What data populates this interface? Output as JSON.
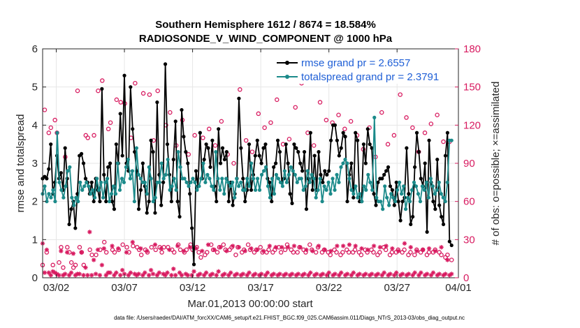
{
  "chart_data": {
    "type": "line",
    "title_line1": "Southern Hemisphere 1612 / 8674 = 18.584%",
    "title_line2": "RADIOSONDE_V_WIND_COMPONENT @ 1000 hPa",
    "xlabel": "Mar.01,2013 00:00:00 start",
    "ylabel": "rmse and totalspread",
    "y2label": "# of obs: o=possible; ×=assimilated",
    "footnote": "data file: /Users/raeder/DAI/ATM_forcXX/CAM6_setup/f.e21.FHIST_BGC.f09_025.CAM6assim.011/Diags_NTrS_2013-03/obs_diag_output.nc",
    "xlim": [
      1,
      31.5
    ],
    "ylim": [
      0,
      6
    ],
    "y2lim": [
      0,
      180
    ],
    "xticks": [
      {
        "v": 2,
        "label": "03/02"
      },
      {
        "v": 7,
        "label": "03/07"
      },
      {
        "v": 12,
        "label": "03/12"
      },
      {
        "v": 17,
        "label": "03/17"
      },
      {
        "v": 22,
        "label": "03/22"
      },
      {
        "v": 27,
        "label": "03/27"
      },
      {
        "v": 32,
        "label": "04/01"
      }
    ],
    "yticks": [
      0,
      1,
      2,
      3,
      4,
      5,
      6
    ],
    "y2ticks": [
      0,
      30,
      60,
      90,
      120,
      150,
      180
    ],
    "colors": {
      "rmse": "#000000",
      "spread": "#1b8a8a",
      "obs": "#d81b60",
      "legend_text": "#1f5fd6"
    },
    "series": [
      {
        "name": "rmse grand pr = 2.6557",
        "key": "rmse",
        "values": [
          2.6,
          2.65,
          2.6,
          2.85,
          3.5,
          2.2,
          2.5,
          3.2,
          2.6,
          2.75,
          2.3,
          3.4,
          2.6,
          1.4,
          1.8,
          2.0,
          1.3,
          2.2,
          3.2,
          3.25,
          3.0,
          2.6,
          2.5,
          2.2,
          2.5,
          2.0,
          2.6,
          2.3,
          2.0,
          4.95,
          2.7,
          2.0,
          2.9,
          3.0,
          2.0,
          1.8,
          3.5,
          3.0,
          4.3,
          3.2,
          5.3,
          3.0,
          2.8,
          5.0,
          3.9,
          3.3,
          2.8,
          1.8,
          2.3,
          3.0,
          2.4,
          1.7,
          2.0,
          3.6,
          3.3,
          1.7,
          4.6,
          2.7,
          1.9,
          2.5,
          5.6,
          3.5,
          2.7,
          2.0,
          3.1,
          4.1,
          2.0,
          1.6,
          4.4,
          3.7,
          3.3,
          3.0,
          2.2,
          1.3,
          0.35,
          2.8,
          2.4,
          3.8,
          2.6,
          3.1,
          3.5,
          3.4,
          2.9,
          3.6,
          2.4,
          2.0,
          3.9,
          3.0,
          3.4,
          3.1,
          3.3,
          2.0,
          2.5,
          1.9,
          2.2,
          2.6,
          4.7,
          3.4,
          2.6,
          2.0,
          2.3,
          3.5,
          2.3,
          2.7,
          3.2,
          3.6,
          3.2,
          3.0,
          3.4,
          3.5,
          2.6,
          2.5,
          2.0,
          2.9,
          3.0,
          3.6,
          3.3,
          2.5,
          2.6,
          3.5,
          3.0,
          2.2,
          1.95,
          3.5,
          3.4,
          3.3,
          3.0,
          2.8,
          3.3,
          1.8,
          2.6,
          3.8,
          2.3,
          3.2,
          2.3,
          3.3,
          2.7,
          2.5,
          2.8,
          2.7,
          2.8,
          3.6,
          4.0,
          4.0,
          3.6,
          3.2,
          3.4,
          3.8,
          3.7,
          2.0,
          2.7,
          3.0,
          2.1,
          3.8,
          3.6,
          2.0,
          2.0,
          3.5,
          3.0,
          3.9,
          3.5,
          3.4,
          2.2,
          1.9,
          2.5,
          2.6,
          2.6,
          2.7,
          2.8,
          2.9,
          2.4,
          2.3,
          1.9,
          2.5,
          2.0,
          1.5,
          2.0,
          2.1,
          3.4,
          2.2,
          1.4,
          1.6,
          2.9,
          3.8,
          3.3,
          2.6,
          2.4,
          3.0,
          1.2,
          3.6,
          2.5,
          2.0,
          1.8,
          3.1,
          1.9,
          1.6,
          1.4,
          3.2,
          3.8,
          0.95,
          0.85
        ]
      },
      {
        "name": "totalspread grand pr = 2.3791",
        "key": "spread",
        "values": [
          2.2,
          2.4,
          2.0,
          2.2,
          2.1,
          2.3,
          2.0,
          3.8,
          2.5,
          2.3,
          2.1,
          2.4,
          2.8,
          2.9,
          2.1,
          1.9,
          2.1,
          2.0,
          2.5,
          2.3,
          2.4,
          2.5,
          2.4,
          2.2,
          2.3,
          2.1,
          2.6,
          2.3,
          2.5,
          2.1,
          2.5,
          2.6,
          2.0,
          2.2,
          2.4,
          2.2,
          3.0,
          2.3,
          2.6,
          2.5,
          2.9,
          3.1,
          2.6,
          2.8,
          2.0,
          3.4,
          2.7,
          2.6,
          2.5,
          2.5,
          2.2,
          2.9,
          2.6,
          2.0,
          2.1,
          2.5,
          2.5,
          3.0,
          2.6,
          2.7,
          3.1,
          2.3,
          2.4,
          2.6,
          2.3,
          3.3,
          2.9,
          2.6,
          2.6,
          2.5,
          2.4,
          2.5,
          2.6,
          2.5,
          2.3,
          2.4,
          2.6,
          3.0,
          2.5,
          2.7,
          2.6,
          2.4,
          2.3,
          3.3,
          2.6,
          2.3,
          2.6,
          2.2,
          2.6,
          2.5,
          2.4,
          2.5,
          2.1,
          2.6,
          2.4,
          2.5,
          2.3,
          2.3,
          2.6,
          2.4,
          3.0,
          2.6,
          2.3,
          2.6,
          2.3,
          2.7,
          2.8,
          2.9,
          2.4,
          2.1,
          2.6,
          2.2,
          2.7,
          2.6,
          2.5,
          2.4,
          2.8,
          2.5,
          2.7,
          2.9,
          2.8,
          2.7,
          2.5,
          2.6,
          2.6,
          2.3,
          2.4,
          2.8,
          2.5,
          2.7,
          2.6,
          2.1,
          2.3,
          2.6,
          2.0,
          2.4,
          2.3,
          2.5,
          2.2,
          2.6,
          2.3,
          2.7,
          2.5,
          2.9,
          3.0,
          3.1,
          3.0,
          2.6,
          2.3,
          2.2,
          2.4,
          2.1,
          2.2,
          2.0,
          2.4,
          2.3,
          2.7,
          2.5,
          2.3,
          4.2,
          2.1,
          2.0,
          2.0,
          1.8,
          2.4,
          2.1,
          1.9,
          2.2,
          2.1,
          2.0,
          2.3,
          2.5,
          2.2,
          2.4,
          1.8,
          2.1,
          2.0,
          2.3,
          2.5,
          2.4,
          2.2,
          2.0,
          2.4,
          2.3,
          2.5,
          2.1,
          2.6,
          2.4,
          2.2,
          2.3,
          2.5,
          2.2,
          2.1,
          2.0,
          2.5,
          3.6,
          3.6
        ]
      },
      {
        "name": "possible",
        "key": "possible",
        "values": [
          10,
          132,
          20,
          114,
          118,
          10,
          124,
          114,
          12,
          24,
          8,
          95,
          24,
          20,
          12,
          8,
          10,
          147,
          24,
          20,
          10,
          112,
          110,
          22,
          18,
          112,
          18,
          147,
          22,
          155,
          28,
          20,
          117,
          122,
          22,
          20,
          140,
          22,
          138,
          26,
          137,
          24,
          20,
          110,
          25,
          153,
          24,
          22,
          18,
          145,
          22,
          20,
          144,
          24,
          108,
          22,
          147,
          24,
          20,
          24,
          120,
          24,
          130,
          22,
          20,
          104,
          26,
          22,
          124,
          20,
          22,
          97,
          26,
          22,
          112,
          24,
          20,
          16,
          110,
          18,
          20,
          117,
          26,
          22,
          104,
          20,
          24,
          123,
          26,
          22,
          97,
          22,
          24,
          90,
          18,
          24,
          148,
          20,
          22,
          108,
          26,
          22,
          99,
          20,
          22,
          129,
          24,
          20,
          118,
          20,
          22,
          122,
          20,
          22,
          140,
          24,
          20,
          105,
          22,
          26,
          109,
          22,
          20,
          134,
          20,
          24,
          153,
          22,
          20,
          114,
          26,
          22,
          104,
          20,
          24,
          138,
          20,
          22,
          124,
          20,
          18,
          122,
          22,
          20,
          128,
          18,
          20,
          117,
          22,
          20,
          123,
          20,
          22,
          112,
          20,
          18,
          101,
          22,
          20,
          118,
          22,
          20,
          95,
          18,
          20,
          130,
          24,
          22,
          105,
          18,
          20,
          112,
          20,
          22,
          144,
          20,
          22,
          126,
          18,
          20,
          118,
          18,
          22,
          99,
          20,
          22,
          114,
          18,
          20,
          121,
          20,
          22,
          128,
          20,
          18,
          107,
          16,
          18,
          107,
          14
        ]
      },
      {
        "name": "assimilated",
        "key": "assimilated",
        "values": [
          27,
          4,
          22,
          4,
          2,
          5,
          4,
          3,
          2,
          21,
          2,
          3,
          20,
          2,
          4,
          19,
          2,
          3,
          3,
          20,
          2,
          8,
          2,
          36,
          2,
          14,
          3,
          22,
          2,
          10,
          23,
          2,
          4,
          4,
          25,
          2,
          4,
          23,
          2,
          6,
          3,
          20,
          2,
          4,
          28,
          3,
          2,
          3,
          23,
          2,
          4,
          21,
          2,
          6,
          3,
          26,
          2,
          4,
          23,
          3,
          2,
          4,
          22,
          2,
          7,
          2,
          25,
          4,
          2,
          21,
          3,
          2,
          24,
          2,
          5,
          23,
          2,
          3,
          21,
          2,
          4,
          26,
          2,
          3,
          22,
          2,
          5,
          24,
          2,
          3,
          21,
          2,
          4,
          25,
          2,
          3,
          24,
          2,
          3,
          21,
          2,
          4,
          23,
          2,
          3,
          22,
          2,
          3,
          21,
          2,
          4,
          25,
          2,
          3,
          24,
          2,
          3,
          24,
          2,
          3,
          24,
          2,
          3,
          25,
          2,
          3,
          24,
          2,
          3,
          22,
          2,
          4,
          21,
          2,
          3,
          25,
          2,
          3,
          22,
          2,
          4,
          21,
          2,
          3,
          25,
          2,
          4,
          25,
          2,
          3,
          26,
          2,
          4,
          25,
          2,
          3,
          23,
          2,
          3,
          22,
          2,
          3,
          25,
          2,
          3,
          24,
          2,
          4,
          25,
          2,
          3,
          23,
          2,
          4,
          21,
          2,
          3,
          27,
          2,
          3,
          24,
          2,
          4,
          21,
          2,
          4,
          22,
          2,
          3,
          23,
          2,
          4,
          21,
          2,
          3,
          24,
          2,
          3,
          14,
          2,
          3
        ]
      }
    ]
  }
}
